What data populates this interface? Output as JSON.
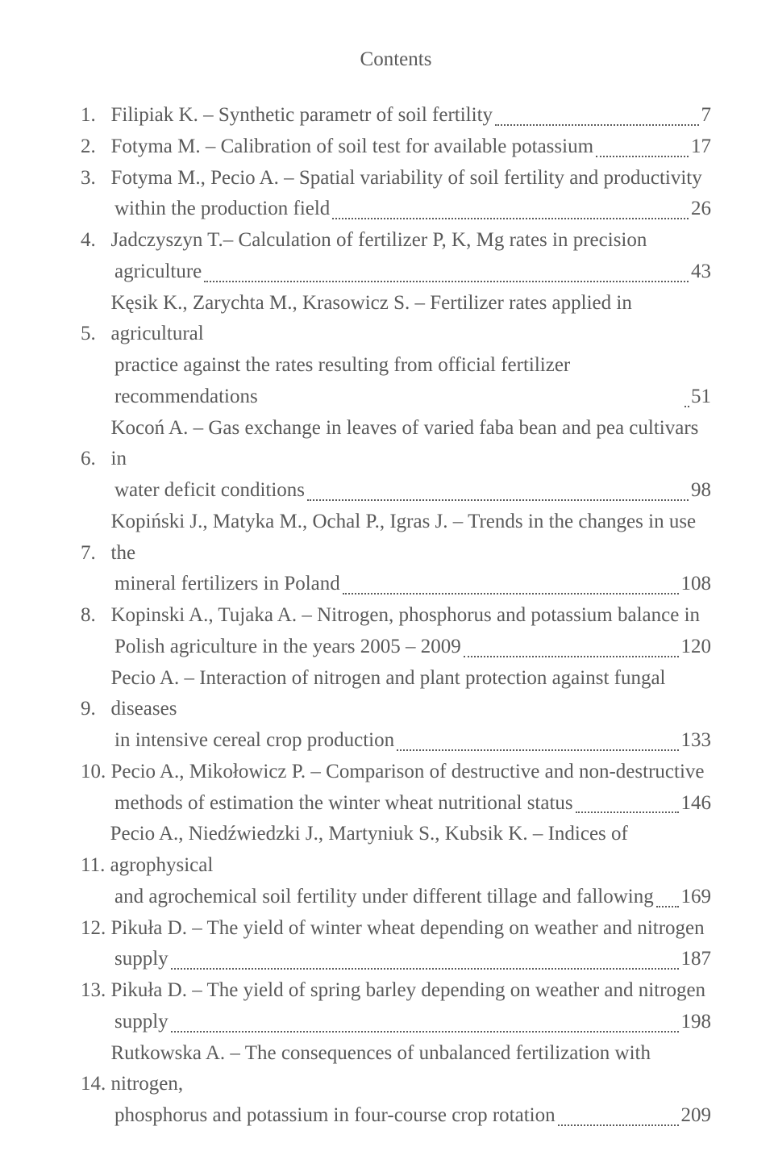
{
  "title": "Contents",
  "text_color": "#5a5a5a",
  "background_color": "#ffffff",
  "font_family": "Times New Roman",
  "base_font_size_pt": 19,
  "entries": [
    {
      "num": "1.",
      "lines": [
        "Filipiak K. – Synthetic parametr of soil fertility"
      ],
      "page": "7"
    },
    {
      "num": "2.",
      "lines": [
        "Fotyma M. – Calibration of soil test for available potassium"
      ],
      "page": "17"
    },
    {
      "num": "3.",
      "lines": [
        "Fotyma M., Pecio A. – Spatial variability of soil fertility and productivity",
        "within the production field"
      ],
      "page": "26"
    },
    {
      "num": "4.",
      "lines": [
        "Jadczyszyn T.– Calculation of fertilizer P, K, Mg rates in precision",
        "agriculture"
      ],
      "page": "43"
    },
    {
      "num": "5.",
      "lines": [
        "Kęsik K., Zarychta M., Krasowicz S. – Fertilizer rates applied in agricultural",
        "practice against the rates resulting from official fertilizer recommendations"
      ],
      "page": "51",
      "tight": true
    },
    {
      "num": "6.",
      "lines": [
        "Kocoń A. – Gas exchange in leaves of varied faba bean and pea cultivars in",
        "water deficit conditions"
      ],
      "page": "98"
    },
    {
      "num": "7.",
      "lines": [
        " Kopiński J., Matyka M., Ochal P., Igras J. – Trends in the changes in use the",
        "mineral fertilizers in Poland"
      ],
      "page": "108"
    },
    {
      "num": "8.",
      "lines": [
        "Kopinski A., Tujaka A. – Nitrogen, phosphorus and potassium balance in",
        "Polish agriculture in the years 2005 – 2009"
      ],
      "page": "120"
    },
    {
      "num": "9.",
      "lines": [
        "Pecio A. – Interaction of nitrogen and plant protection against fungal diseases",
        "in intensive cereal crop production "
      ],
      "page": "133"
    },
    {
      "num": "10.",
      "lines": [
        "Pecio A., Mikołowicz P. – Comparison of destructive and non-destructive",
        "methods of estimation the winter wheat nutritional  status"
      ],
      "page": "146"
    },
    {
      "num": "11.",
      "lines": [
        "Pecio A., Niedźwiedzki J., Martyniuk S., Kubsik K. – Indices of agrophysical",
        "and agrochemical soil fertility under different tillage and fallowing "
      ],
      "page": "169"
    },
    {
      "num": "12.",
      "lines": [
        "Pikuła D. – The yield of winter wheat depending on weather and nitrogen",
        "supply "
      ],
      "page": "187"
    },
    {
      "num": "13.",
      "lines": [
        "Pikuła D. – The yield of spring barley depending on weather and nitrogen",
        "supply "
      ],
      "page": "198"
    },
    {
      "num": "14.",
      "lines": [
        "Rutkowska A. – The consequences of unbalanced fertilization with nitrogen,",
        "phosphorus and potassium in four-course crop rotation"
      ],
      "page": "209"
    }
  ]
}
